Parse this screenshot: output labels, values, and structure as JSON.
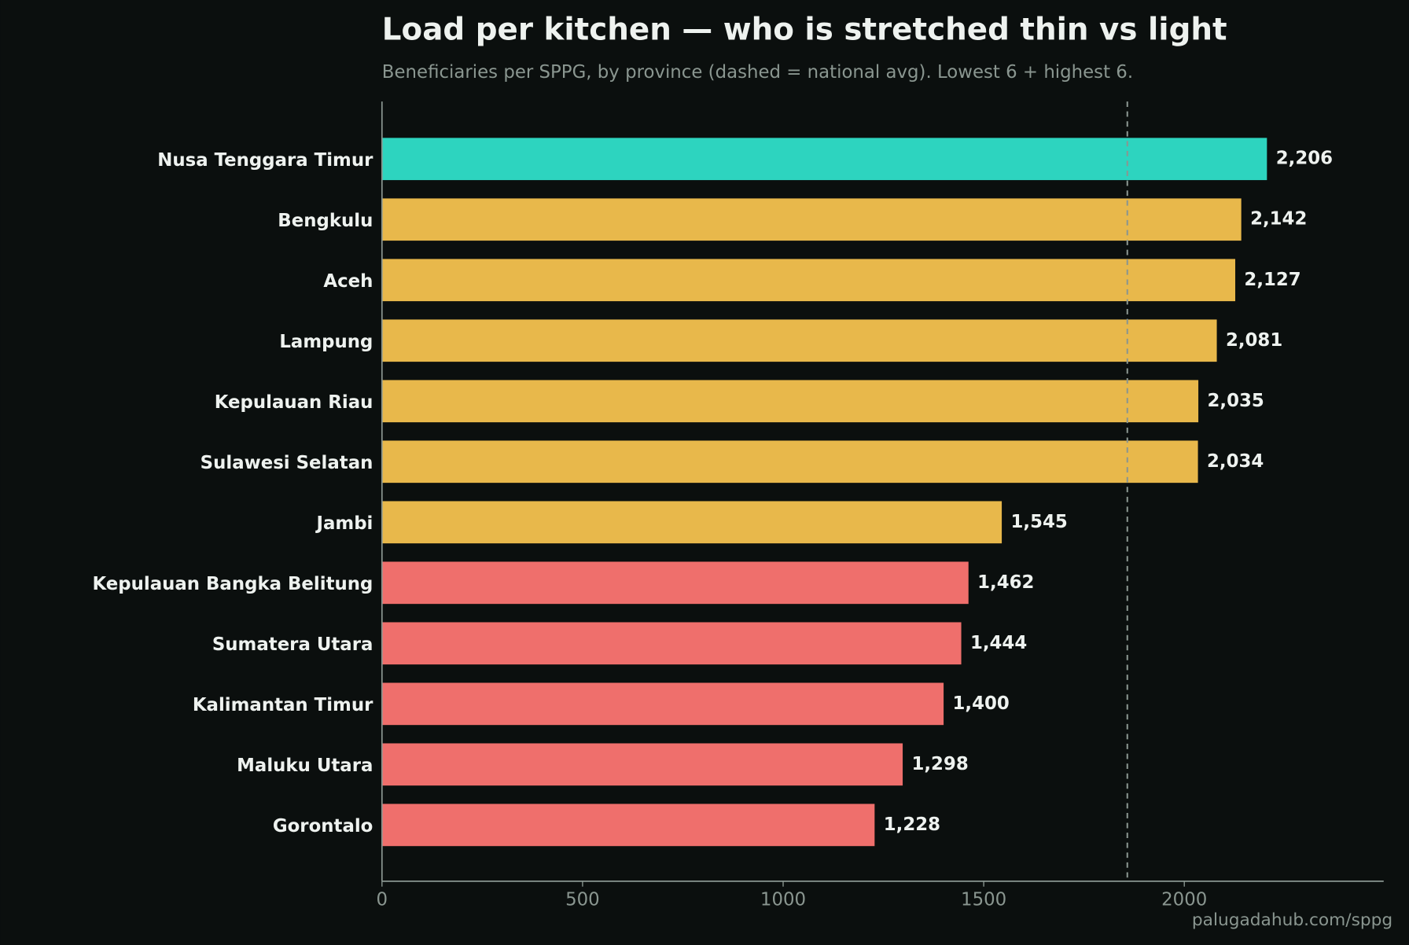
{
  "chart_data": {
    "type": "barh",
    "title": "Load per kitchen — who is stretched thin vs light",
    "subtitle": "Beneficiaries per SPPG, by province (dashed = national avg). Lowest 6 + highest 6.",
    "categories": [
      "Nusa Tenggara Timur",
      "Bengkulu",
      "Aceh",
      "Lampung",
      "Kepulauan Riau",
      "Sulawesi Selatan",
      "Jambi",
      "Kepulauan Bangka Belitung",
      "Sumatera Utara",
      "Kalimantan Timur",
      "Maluku Utara",
      "Gorontalo"
    ],
    "values": [
      2206,
      2142,
      2127,
      2081,
      2035,
      2034,
      1545,
      1462,
      1444,
      1400,
      1298,
      1228
    ],
    "value_labels": [
      "2,206",
      "2,142",
      "2,127",
      "2,081",
      "2,035",
      "2,034",
      "1,545",
      "1,462",
      "1,444",
      "1,400",
      "1,298",
      "1,228"
    ],
    "colors": [
      "#2dd4bf",
      "#e8b84b",
      "#e8b84b",
      "#e8b84b",
      "#e8b84b",
      "#e8b84b",
      "#e8b84b",
      "#ef6f6c",
      "#ef6f6c",
      "#ef6f6c",
      "#ef6f6c",
      "#ef6f6c"
    ],
    "reference_line": 1858,
    "xlim": [
      0,
      2497
    ],
    "xticks": [
      0,
      500,
      1000,
      1500,
      2000
    ],
    "source": "palugadahub.com/sppg"
  }
}
